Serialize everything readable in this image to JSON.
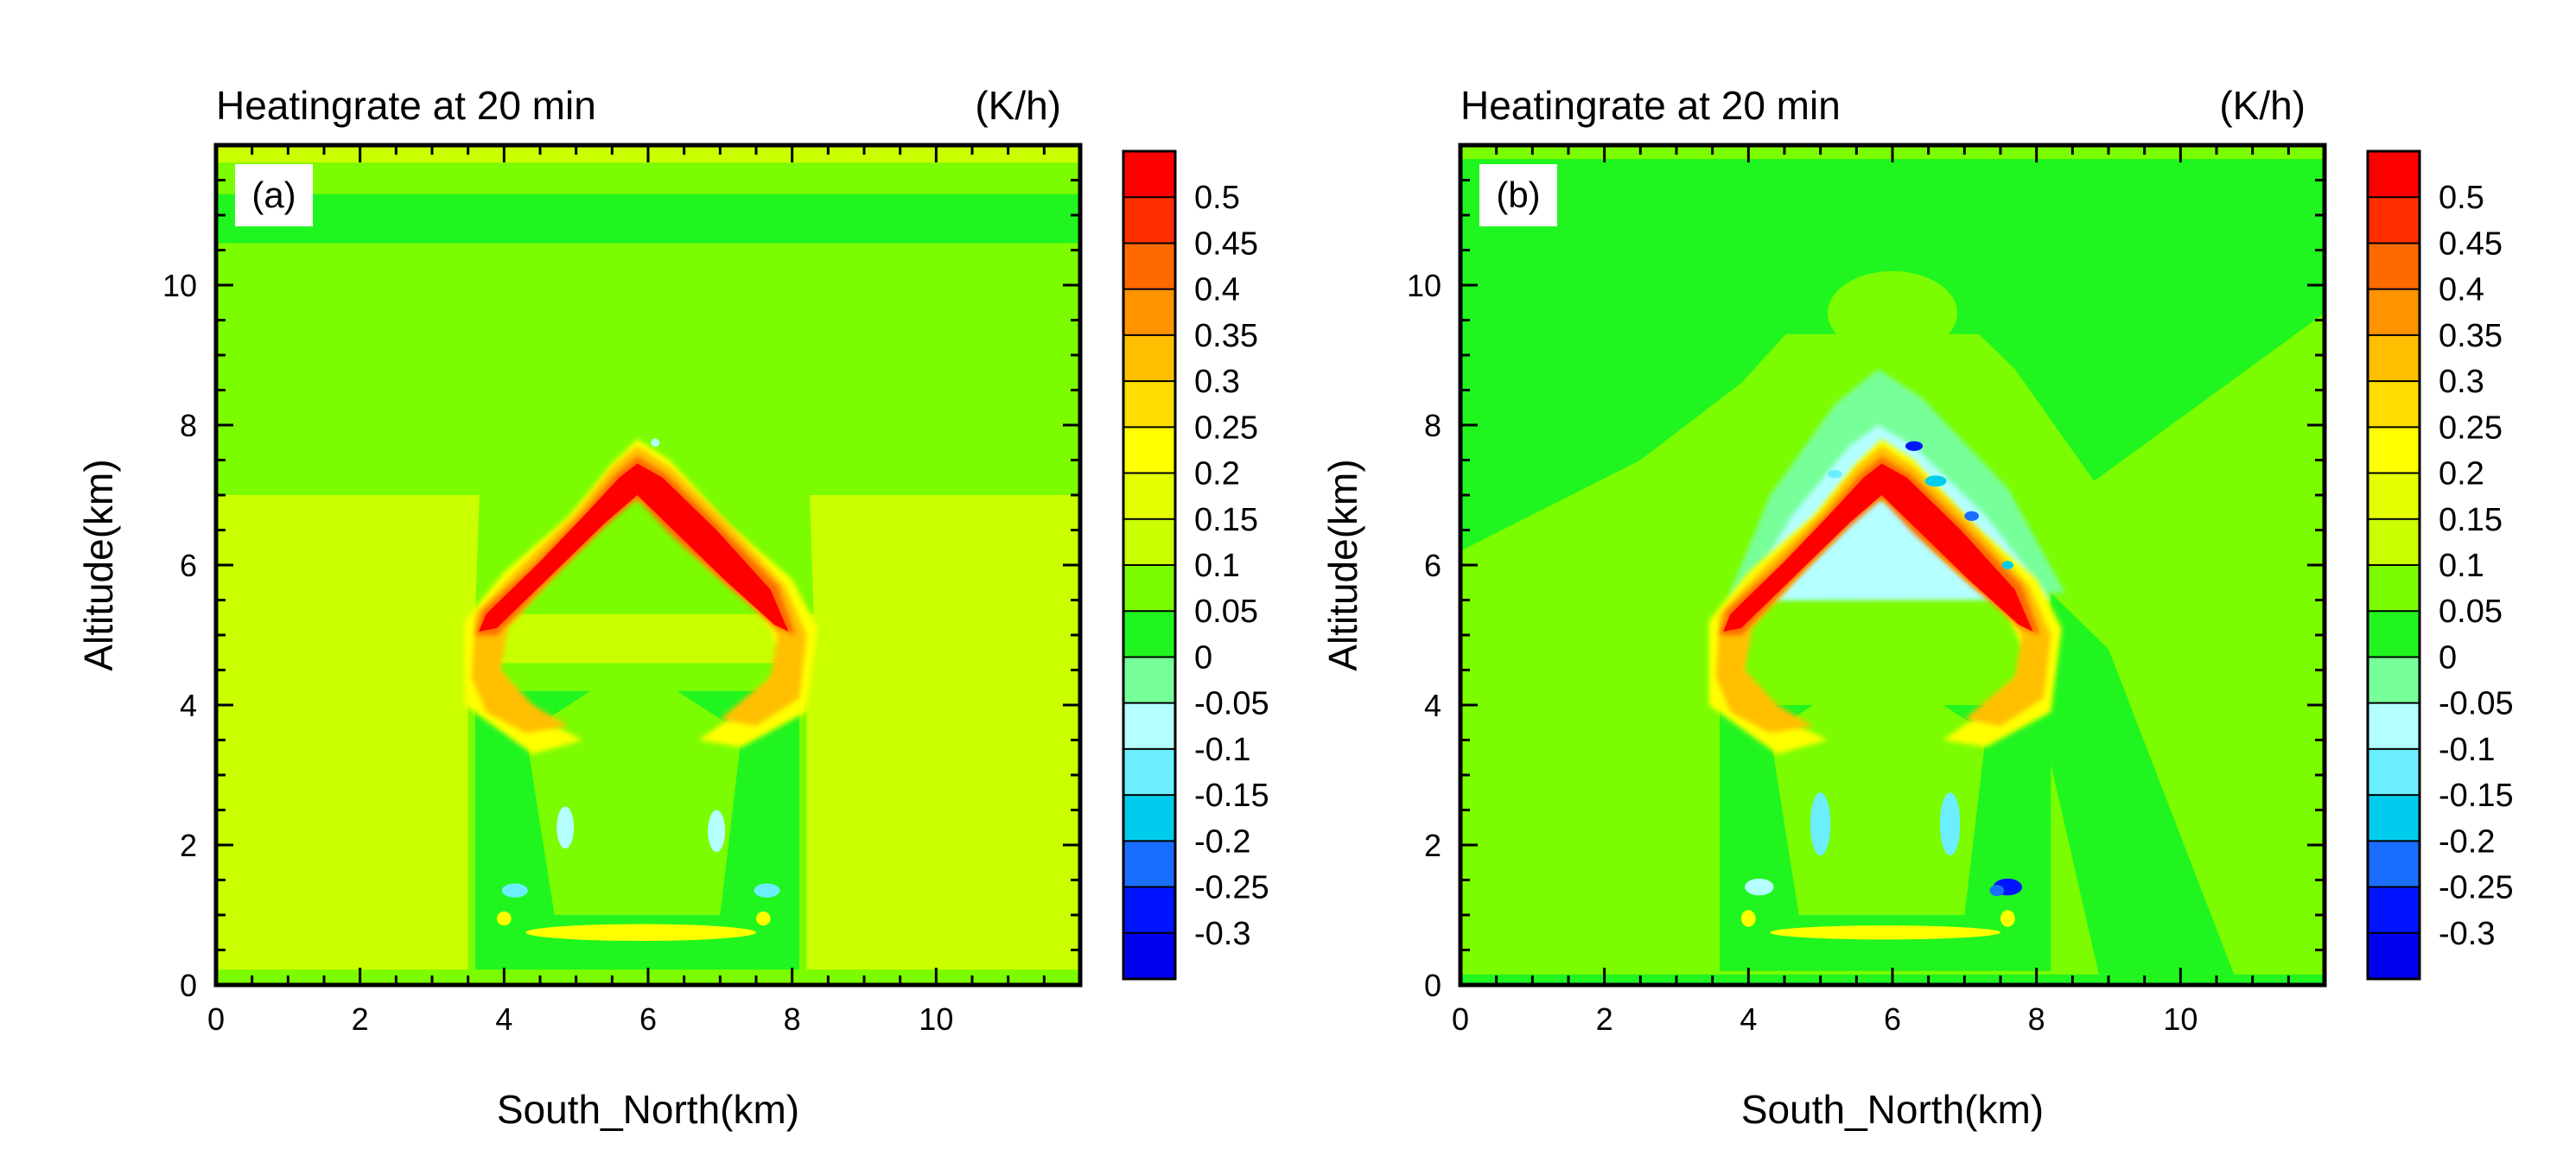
{
  "chart_data": [
    {
      "type": "heatmap",
      "panel_label": "(a)",
      "title": "Heatingrate at 20 min",
      "units": "(K/h)",
      "xlabel": "South_North(km)",
      "ylabel": "Altitude(km)",
      "xlim": [
        0,
        12
      ],
      "ylim": [
        0,
        12
      ],
      "xticks": [
        0,
        2,
        4,
        6,
        8,
        10
      ],
      "yticks": [
        0,
        2,
        4,
        6,
        8,
        10
      ],
      "background_value": 0.1,
      "features": [
        {
          "name": "upper-band",
          "value": 0.05,
          "x": [
            0,
            12
          ],
          "y": [
            7.0,
            11.8
          ]
        },
        {
          "name": "top-strip",
          "value": 0.0,
          "x": [
            0,
            12
          ],
          "y": [
            10.6,
            11.3
          ]
        },
        {
          "name": "core-column",
          "value": 0.0,
          "x": [
            3.6,
            8.1
          ],
          "y": [
            0.15,
            4.2
          ]
        },
        {
          "name": "heating-arch",
          "value": 0.5,
          "apex": [
            5.8,
            7.45
          ],
          "ends": [
            [
              3.6,
              5.1
            ],
            [
              8.0,
              5.1
            ]
          ]
        },
        {
          "name": "cooling-spots",
          "value": -0.15,
          "points": [
            [
              4.9,
              2.2
            ],
            [
              6.9,
              2.2
            ],
            [
              4.1,
              1.3
            ],
            [
              7.6,
              1.3
            ]
          ]
        }
      ]
    },
    {
      "type": "heatmap",
      "panel_label": "(b)",
      "title": "Heatingrate at 20 min",
      "units": "(K/h)",
      "xlabel": "South_North(km)",
      "ylabel": "Altitude(km)",
      "xlim": [
        0,
        12
      ],
      "ylim": [
        0,
        12
      ],
      "xticks": [
        0,
        2,
        4,
        6,
        8,
        10
      ],
      "yticks": [
        0,
        2,
        4,
        6,
        8,
        10
      ],
      "background_value": 0.05,
      "features": [
        {
          "name": "upper-region",
          "value": 0.0,
          "x": [
            0,
            12
          ],
          "y": [
            9.5,
            11.8
          ]
        },
        {
          "name": "diagonal-cooling-band",
          "value": 0.0,
          "from": [
            8.2,
            5.5
          ],
          "to": [
            10.8,
            0.0
          ]
        },
        {
          "name": "cool-cap-above-arch",
          "value": -0.1,
          "apex": [
            5.8,
            8.0
          ]
        },
        {
          "name": "heating-arch",
          "value": 0.5,
          "apex": [
            5.8,
            7.45
          ],
          "ends": [
            [
              3.6,
              5.1
            ],
            [
              8.1,
              5.1
            ]
          ]
        },
        {
          "name": "cooling-spots",
          "value": -0.3,
          "points": [
            [
              6.4,
              7.7
            ],
            [
              7.6,
              1.4
            ],
            [
              5.0,
              2.3
            ],
            [
              6.8,
              2.3
            ]
          ]
        }
      ]
    }
  ],
  "colorbar": {
    "labels": [
      "0.5",
      "0.45",
      "0.4",
      "0.35",
      "0.3",
      "0.25",
      "0.2",
      "0.15",
      "0.1",
      "0.05",
      "0",
      "-0.05",
      "-0.1",
      "-0.15",
      "-0.2",
      "-0.25",
      "-0.3"
    ],
    "colors": [
      "#ff0000",
      "#ff2f00",
      "#ff6a00",
      "#ff9300",
      "#ffbf00",
      "#ffdd00",
      "#ffff00",
      "#e5ff00",
      "#c9ff00",
      "#7bfc00",
      "#21f520",
      "#77ff99",
      "#b4ffff",
      "#6befff",
      "#00cdee",
      "#1a6eff",
      "#0014ff",
      "#0000ef"
    ]
  }
}
